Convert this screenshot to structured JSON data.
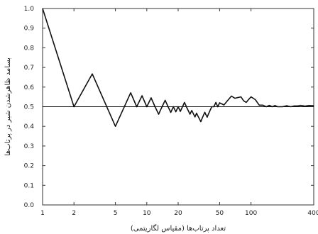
{
  "chart_data": {
    "type": "line",
    "title": "",
    "xlabel": "تعداد پرتاب‌ها (مقیاس لگاریتمی)",
    "ylabel": "بسامد ظاهرشدن شیر در پرتاب‌ها",
    "xscale": "log",
    "xlim": [
      1,
      400
    ],
    "ylim": [
      0,
      1.0
    ],
    "xticks": [
      1,
      2,
      5,
      10,
      20,
      50,
      100,
      400
    ],
    "yticks": [
      0.0,
      0.1,
      0.2,
      0.3,
      0.4,
      0.5,
      0.6,
      0.7,
      0.8,
      0.9,
      1.0
    ],
    "ytick_labels": [
      "0.0",
      "0.1",
      "0.2",
      "0.3",
      "0.4",
      "0.5",
      "0.6",
      "0.7",
      "0.8",
      "0.9",
      "1.0"
    ],
    "grid": false,
    "reference_line": {
      "y": 0.5
    },
    "series": [
      {
        "color": "#111111",
        "x": [
          1,
          2,
          3,
          5,
          7,
          8,
          9,
          10,
          11,
          12,
          13,
          14,
          15,
          16,
          17,
          18,
          19,
          20,
          21,
          22,
          23,
          24,
          25,
          26,
          27,
          28,
          29,
          30,
          31,
          32,
          33,
          34,
          35,
          36,
          37,
          38,
          39,
          40,
          42,
          44,
          46,
          48,
          50,
          55,
          60,
          65,
          70,
          75,
          80,
          85,
          90,
          95,
          100,
          110,
          120,
          130,
          140,
          150,
          160,
          170,
          180,
          200,
          220,
          240,
          260,
          280,
          300,
          330,
          360,
          400
        ],
        "y": [
          1.0,
          0.5,
          0.667,
          0.4,
          0.571,
          0.5,
          0.556,
          0.5,
          0.545,
          0.5,
          0.462,
          0.5,
          0.533,
          0.5,
          0.471,
          0.5,
          0.474,
          0.5,
          0.476,
          0.5,
          0.522,
          0.5,
          0.48,
          0.462,
          0.481,
          0.464,
          0.448,
          0.467,
          0.452,
          0.438,
          0.424,
          0.441,
          0.457,
          0.472,
          0.459,
          0.447,
          0.462,
          0.475,
          0.5,
          0.5,
          0.522,
          0.5,
          0.52,
          0.509,
          0.533,
          0.554,
          0.543,
          0.547,
          0.55,
          0.53,
          0.522,
          0.537,
          0.55,
          0.536,
          0.508,
          0.508,
          0.5,
          0.507,
          0.5,
          0.506,
          0.5,
          0.5,
          0.505,
          0.5,
          0.504,
          0.504,
          0.507,
          0.503,
          0.506,
          0.505
        ]
      }
    ]
  }
}
